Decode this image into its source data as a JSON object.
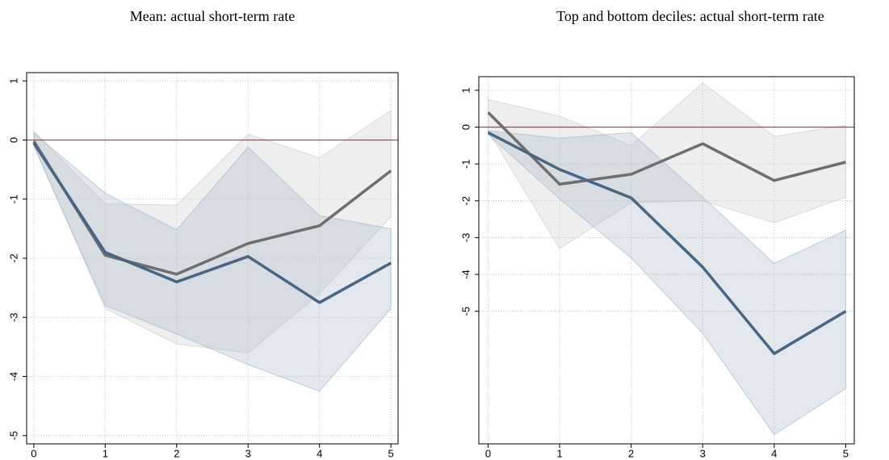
{
  "chart_data": [
    {
      "type": "line",
      "title": "Mean: actual short-term rate",
      "x": [
        0,
        1,
        2,
        3,
        4,
        5
      ],
      "xlim": [
        -0.1,
        5.1
      ],
      "xticks": [
        0,
        1,
        2,
        3,
        4,
        5
      ],
      "ylim": [
        -5.14,
        1.14
      ],
      "yticks": [
        1,
        0,
        -1,
        -2,
        -3,
        -4,
        -5
      ],
      "grid": true,
      "refline": {
        "value": 0,
        "color": "#b5424d"
      },
      "series": [
        {
          "color": "#6e6e6e",
          "band_color": "#c8c8c8",
          "values": [
            -0.02,
            -1.95,
            -2.27,
            -1.75,
            -1.45,
            -0.52
          ],
          "upper": [
            0.15,
            -1.08,
            -1.1,
            0.1,
            -0.3,
            0.5
          ],
          "lower": [
            -0.1,
            -2.85,
            -3.45,
            -3.6,
            -2.6,
            -1.3
          ]
        },
        {
          "color": "#4a6582",
          "band_color": "#9fb2c6",
          "values": [
            -0.05,
            -1.9,
            -2.4,
            -1.97,
            -2.75,
            -2.08
          ],
          "upper": [
            0.12,
            -0.9,
            -1.52,
            -0.12,
            -1.28,
            -1.5
          ],
          "lower": [
            -0.1,
            -2.8,
            -3.28,
            -3.8,
            -4.25,
            -2.85
          ]
        }
      ]
    },
    {
      "type": "line",
      "title": "Top and bottom deciles: actual short-term rate",
      "x": [
        0,
        1,
        2,
        3,
        4,
        5
      ],
      "xlim": [
        -0.13,
        5.12
      ],
      "xticks": [
        0,
        1,
        2,
        3,
        4,
        5
      ],
      "ylim": [
        -8.6,
        1.37
      ],
      "yticks": [
        1,
        0,
        -1,
        -2,
        -3,
        -4,
        -5
      ],
      "grid": true,
      "refline": {
        "value": 0,
        "color": "#b5424d"
      },
      "series": [
        {
          "color": "#6e6e6e",
          "band_color": "#c8c8c8",
          "values": [
            0.4,
            -1.55,
            -1.28,
            -0.45,
            -1.45,
            -0.95
          ],
          "upper": [
            0.75,
            0.3,
            -0.5,
            1.2,
            -0.25,
            0.05
          ],
          "lower": [
            -0.1,
            -3.3,
            -2.05,
            -2.0,
            -2.6,
            -1.9
          ]
        },
        {
          "color": "#4a6582",
          "band_color": "#9fb2c6",
          "values": [
            -0.15,
            -1.15,
            -1.92,
            -3.8,
            -6.15,
            -5.0
          ],
          "upper": [
            -0.1,
            -0.3,
            -0.15,
            -1.9,
            -3.7,
            -2.8
          ],
          "lower": [
            -0.2,
            -1.95,
            -3.55,
            -5.6,
            -8.35,
            -7.1
          ]
        }
      ]
    }
  ]
}
